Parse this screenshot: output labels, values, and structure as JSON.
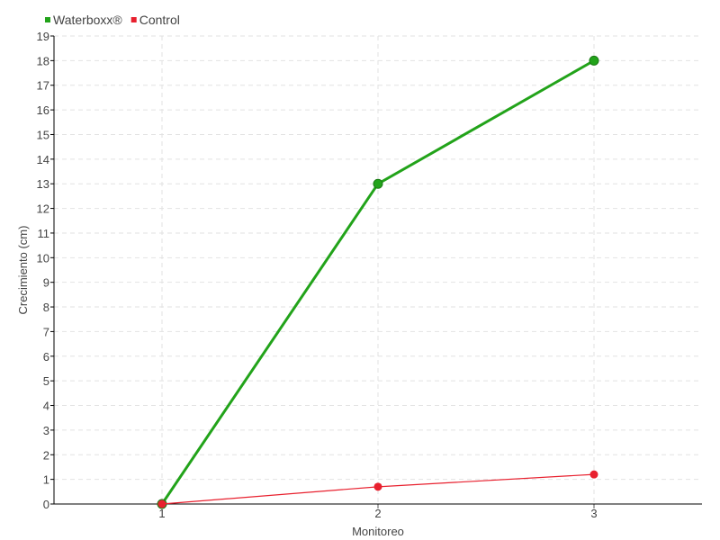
{
  "chart_data": {
    "type": "line",
    "title": "",
    "xlabel": "Monitoreo",
    "ylabel": "Crecimiento (cm)",
    "categories": [
      "1",
      "2",
      "3"
    ],
    "xlim": [
      0.5,
      3.5
    ],
    "ylim": [
      0,
      19
    ],
    "yticks": [
      0,
      1,
      2,
      3,
      4,
      5,
      6,
      7,
      8,
      9,
      10,
      11,
      12,
      13,
      14,
      15,
      16,
      17,
      18,
      19
    ],
    "grid": true,
    "legend_position": "top-left",
    "series": [
      {
        "name": "Waterboxx®",
        "color": "#22a31a",
        "values": [
          0,
          13,
          18
        ]
      },
      {
        "name": "Control",
        "color": "#e8202e",
        "values": [
          0,
          0.7,
          1.2
        ]
      }
    ]
  }
}
